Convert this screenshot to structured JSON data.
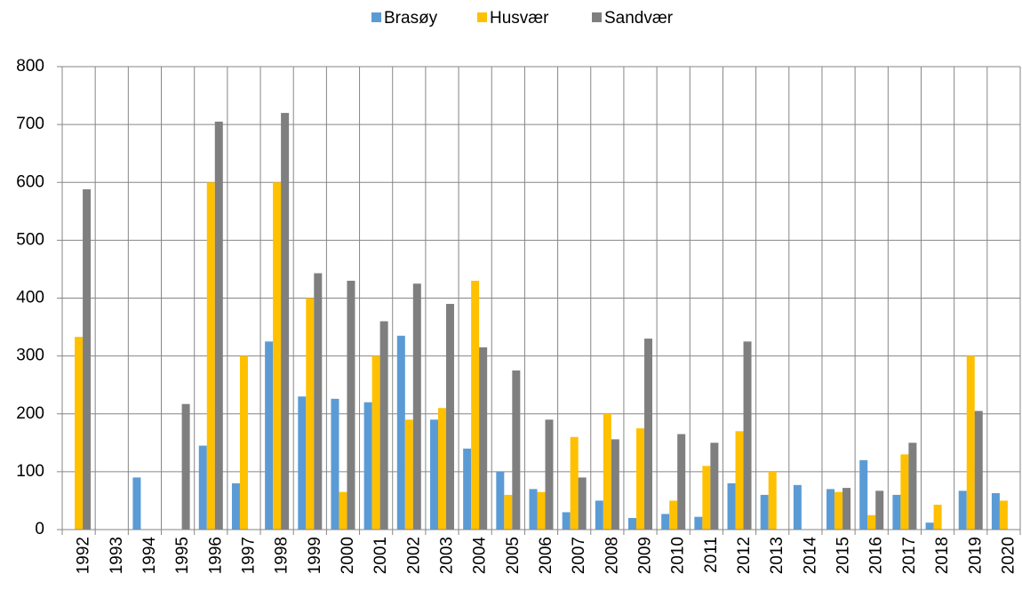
{
  "chart_data": {
    "type": "bar",
    "categories": [
      "1992",
      "1993",
      "1994",
      "1995",
      "1996",
      "1997",
      "1998",
      "1999",
      "2000",
      "2001",
      "2002",
      "2003",
      "2004",
      "2005",
      "2006",
      "2007",
      "2008",
      "2009",
      "2010",
      "2011",
      "2012",
      "2013",
      "2014",
      "2015",
      "2016",
      "2017",
      "2018",
      "2019",
      "2020"
    ],
    "series": [
      {
        "name": "Brasøy",
        "color": "#5b9bd5",
        "values": [
          null,
          null,
          90,
          null,
          145,
          80,
          325,
          230,
          226,
          220,
          335,
          190,
          140,
          100,
          70,
          30,
          50,
          20,
          27,
          22,
          80,
          60,
          77,
          70,
          120,
          60,
          12,
          67,
          63
        ]
      },
      {
        "name": "Husvær",
        "color": "#ffc000",
        "values": [
          333,
          null,
          null,
          null,
          600,
          300,
          600,
          400,
          65,
          300,
          190,
          210,
          430,
          60,
          65,
          160,
          200,
          175,
          50,
          110,
          170,
          100,
          null,
          65,
          25,
          130,
          43,
          300,
          50
        ]
      },
      {
        "name": "Sandvær",
        "color": "#7f7f7f",
        "values": [
          588,
          null,
          null,
          217,
          705,
          null,
          720,
          443,
          430,
          360,
          425,
          390,
          315,
          275,
          190,
          90,
          156,
          330,
          165,
          150,
          325,
          null,
          null,
          72,
          67,
          150,
          null,
          205,
          null
        ]
      }
    ],
    "ylim": [
      0,
      800
    ],
    "yticks": [
      0,
      100,
      200,
      300,
      400,
      500,
      600,
      700,
      800
    ],
    "grid": true,
    "legend": "top"
  }
}
